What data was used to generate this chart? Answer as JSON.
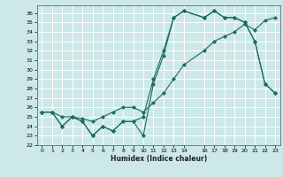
{
  "title": "",
  "xlabel": "Humidex (Indice chaleur)",
  "bg_color": "#cce8e8",
  "grid_color": "#ffffff",
  "line_color": "#1a6b5a",
  "xlim": [
    -0.5,
    23.5
  ],
  "ylim": [
    22,
    36.8
  ],
  "yticks": [
    22,
    23,
    24,
    25,
    26,
    27,
    28,
    29,
    30,
    31,
    32,
    33,
    34,
    35,
    36
  ],
  "xticks": [
    0,
    1,
    2,
    3,
    4,
    5,
    6,
    7,
    8,
    9,
    10,
    11,
    12,
    13,
    14,
    16,
    17,
    18,
    19,
    20,
    21,
    22,
    23
  ],
  "line1_x": [
    0,
    1,
    2,
    3,
    4,
    5,
    6,
    7,
    8,
    9,
    10,
    11,
    12,
    13,
    14,
    16,
    17,
    18,
    19,
    20,
    21,
    22,
    23
  ],
  "line1_y": [
    25.5,
    25.5,
    25.0,
    25.0,
    24.8,
    24.5,
    25.0,
    25.5,
    26.0,
    26.0,
    25.5,
    26.5,
    27.5,
    29.0,
    30.5,
    32.0,
    33.0,
    33.5,
    34.0,
    34.8,
    34.2,
    35.2,
    35.5
  ],
  "line2_x": [
    0,
    1,
    2,
    3,
    4,
    5,
    6,
    7,
    8,
    9,
    10,
    11,
    12,
    13,
    14,
    16,
    17,
    18,
    19,
    20,
    21,
    22,
    23
  ],
  "line2_y": [
    25.5,
    25.5,
    24.0,
    25.0,
    24.5,
    23.0,
    24.0,
    23.5,
    24.5,
    24.5,
    23.0,
    28.5,
    31.5,
    35.5,
    36.2,
    35.5,
    36.2,
    35.5,
    35.5,
    35.0,
    33.0,
    28.5,
    27.5
  ],
  "line3_x": [
    0,
    1,
    2,
    3,
    4,
    5,
    6,
    7,
    8,
    9,
    10,
    11,
    12,
    13,
    14,
    16,
    17,
    18,
    19,
    20,
    21,
    22,
    23
  ],
  "line3_y": [
    25.5,
    25.5,
    24.0,
    25.0,
    24.5,
    23.0,
    24.0,
    23.5,
    24.5,
    24.5,
    25.0,
    29.0,
    32.0,
    35.5,
    36.2,
    35.5,
    36.2,
    35.5,
    35.5,
    35.0,
    33.0,
    28.5,
    27.5
  ]
}
